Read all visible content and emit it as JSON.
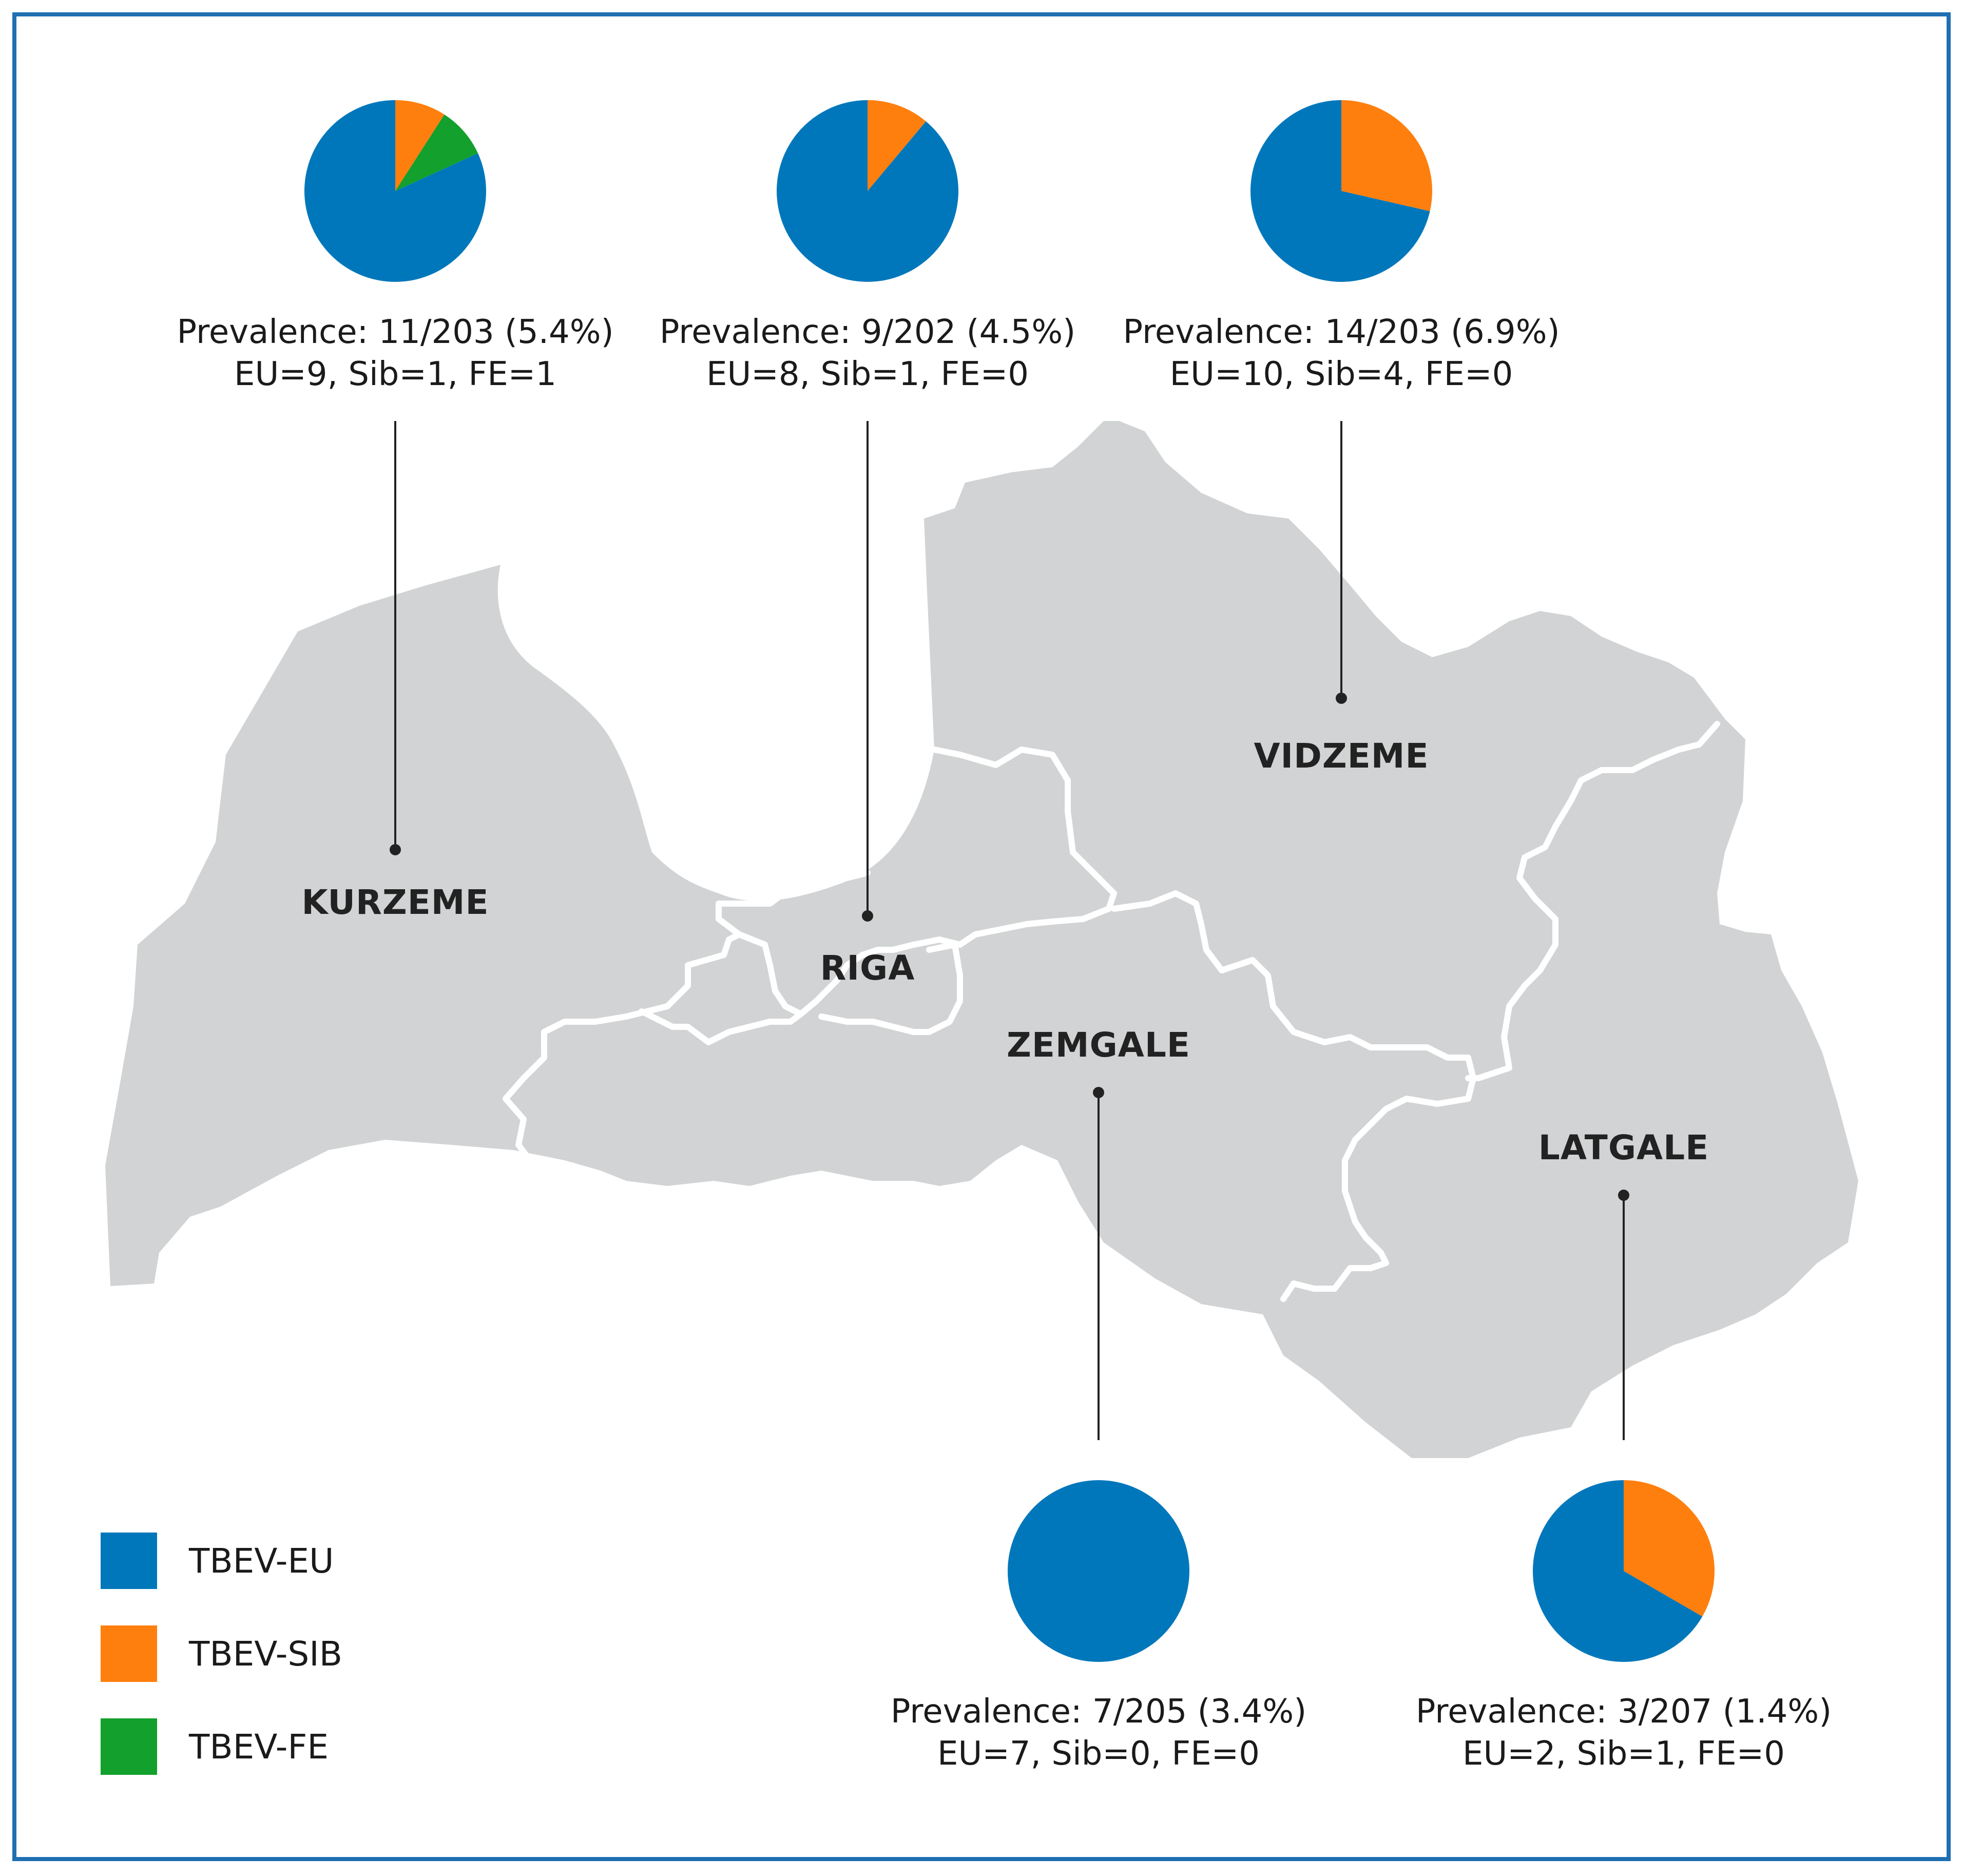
{
  "colors": {
    "frame": "#1f6fb2",
    "land": "#d1d3d4",
    "border": "#ffffff",
    "leader": "#222222",
    "TBEV-EU": "#0077bb",
    "TBEV-SIB": "#ff7f0e",
    "TBEV-FE": "#13a02c"
  },
  "legend": [
    {
      "key": "TBEV-EU",
      "label": "TBEV-EU"
    },
    {
      "key": "TBEV-SIB",
      "label": "TBEV-SIB"
    },
    {
      "key": "TBEV-FE",
      "label": "TBEV-FE"
    }
  ],
  "chart_data": {
    "type": "pie",
    "series": [
      "TBEV-EU",
      "TBEV-SIB",
      "TBEV-FE"
    ],
    "regions": [
      {
        "id": "kurzeme",
        "name": "KURZEME",
        "prevalence_text": "Prevalence: 11/203 (5.4%)",
        "counts_text": "EU=9, Sib=1, FE=1",
        "values": [
          9,
          1,
          1
        ]
      },
      {
        "id": "riga",
        "name": "RIGA",
        "prevalence_text": "Prevalence: 9/202 (4.5%)",
        "counts_text": "EU=8, Sib=1, FE=0",
        "values": [
          8,
          1,
          0
        ]
      },
      {
        "id": "vidzeme",
        "name": "VIDZEME",
        "prevalence_text": "Prevalence: 14/203 (6.9%)",
        "counts_text": "EU=10, Sib=4, FE=0",
        "values": [
          10,
          4,
          0
        ]
      },
      {
        "id": "zemgale",
        "name": "ZEMGALE",
        "prevalence_text": "Prevalence: 7/205 (3.4%)",
        "counts_text": "EU=7, Sib=0, FE=0",
        "values": [
          7,
          0,
          0
        ]
      },
      {
        "id": "latgale",
        "name": "LATGALE",
        "prevalence_text": "Prevalence: 3/207 (1.4%)",
        "counts_text": "EU=2, Sib=1, FE=0",
        "values": [
          2,
          1,
          0
        ]
      }
    ]
  }
}
